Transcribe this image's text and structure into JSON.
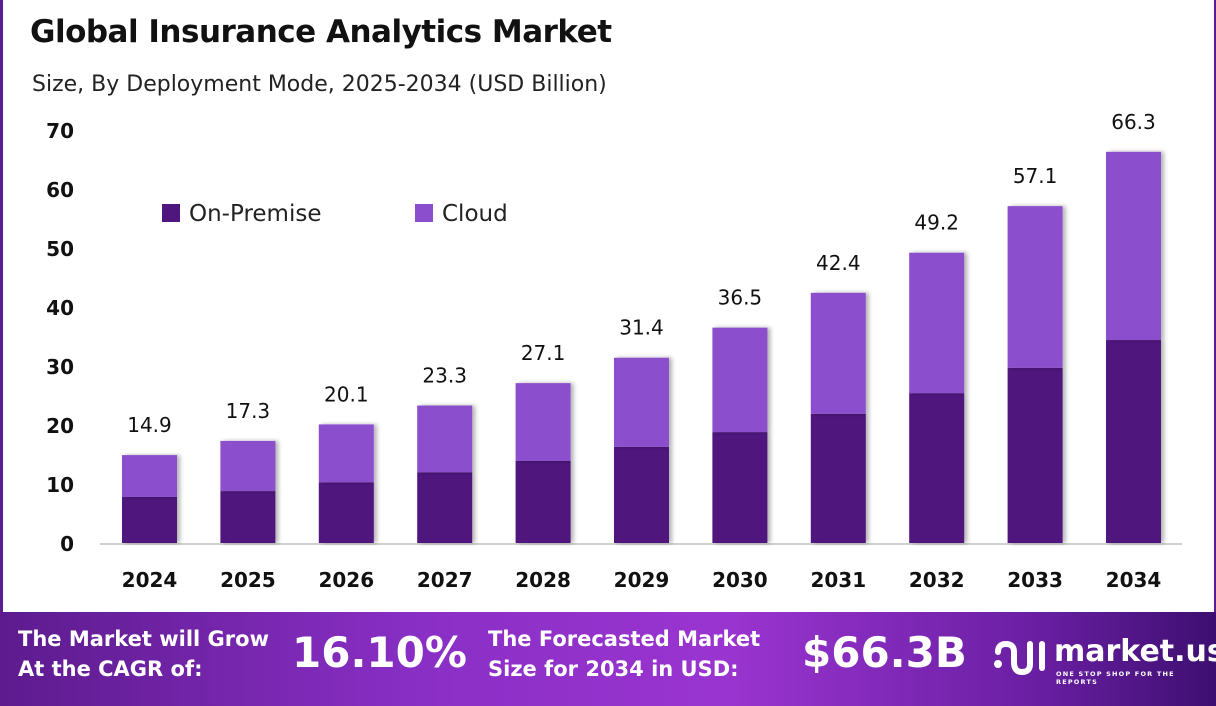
{
  "title": "Global Insurance Analytics Market",
  "subtitle": "Size, By Deployment Mode, 2025-2034 (USD Billion)",
  "chart_data": {
    "type": "bar",
    "stacked": true,
    "categories": [
      "2024",
      "2025",
      "2026",
      "2027",
      "2028",
      "2029",
      "2030",
      "2031",
      "2032",
      "2033",
      "2034"
    ],
    "series": [
      {
        "name": "On-Premise",
        "color": "#4f167e",
        "values": [
          7.8,
          8.8,
          10.3,
          12.0,
          13.9,
          16.3,
          18.8,
          21.9,
          25.4,
          29.7,
          34.4
        ]
      },
      {
        "name": "Cloud",
        "color": "#8b4fcd",
        "values": [
          7.1,
          8.5,
          9.8,
          11.3,
          13.2,
          15.1,
          17.7,
          20.5,
          23.8,
          27.4,
          31.9
        ]
      }
    ],
    "totals": [
      "14.9",
      "17.3",
      "20.1",
      "23.3",
      "27.1",
      "31.4",
      "36.5",
      "42.4",
      "49.2",
      "57.1",
      "66.3"
    ],
    "yticks": [
      "0",
      "10",
      "20",
      "30",
      "40",
      "50",
      "60",
      "70"
    ],
    "ylim": [
      0,
      70
    ],
    "grid": false,
    "legend": "top-left"
  },
  "footer": {
    "cagr_label_1": "The Market will Grow",
    "cagr_label_2": "At the CAGR of:",
    "cagr_value": "16.10%",
    "size_label_1": "The Forecasted Market",
    "size_label_2": "Size for 2034 in USD:",
    "size_value": "$66.3B",
    "brand": "market.us",
    "tagline": "ONE STOP SHOP FOR THE REPORTS"
  }
}
